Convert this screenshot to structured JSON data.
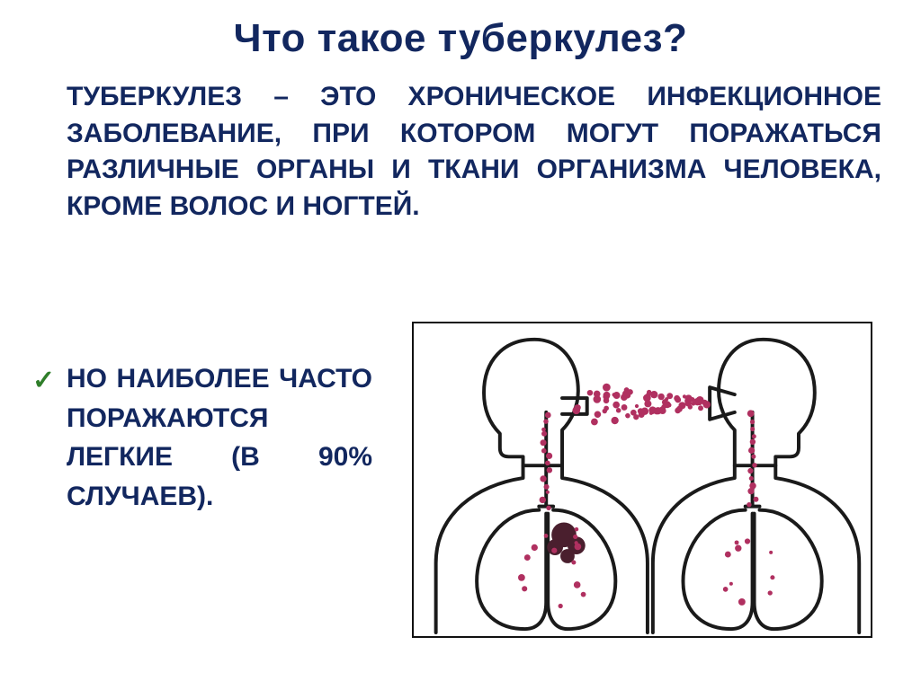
{
  "title": {
    "text": "Что такое туберкулез?",
    "color": "#12275f",
    "fontsize": 44
  },
  "checkmark_color": "#2f7e2a",
  "term_color": "#12275f",
  "body_color": "#12275f",
  "body_fontsize": 30,
  "para2_fontsize": 30,
  "paragraph1": {
    "term": "ТУБЕРКУЛЕЗ",
    "rest": " – это хроническое инфекционное заболевание, при котором могут поражаться различные органы и ткани организма человека, кроме волос и ногтей."
  },
  "paragraph2": "Но наиболее часто поражаются легкие (в 90% случаев).",
  "figure": {
    "outline_color": "#1a1a1a",
    "outline_width": 4,
    "particle_color": "#b03060",
    "tumor_color": "#4a1f2e",
    "bg": "#ffffff"
  }
}
